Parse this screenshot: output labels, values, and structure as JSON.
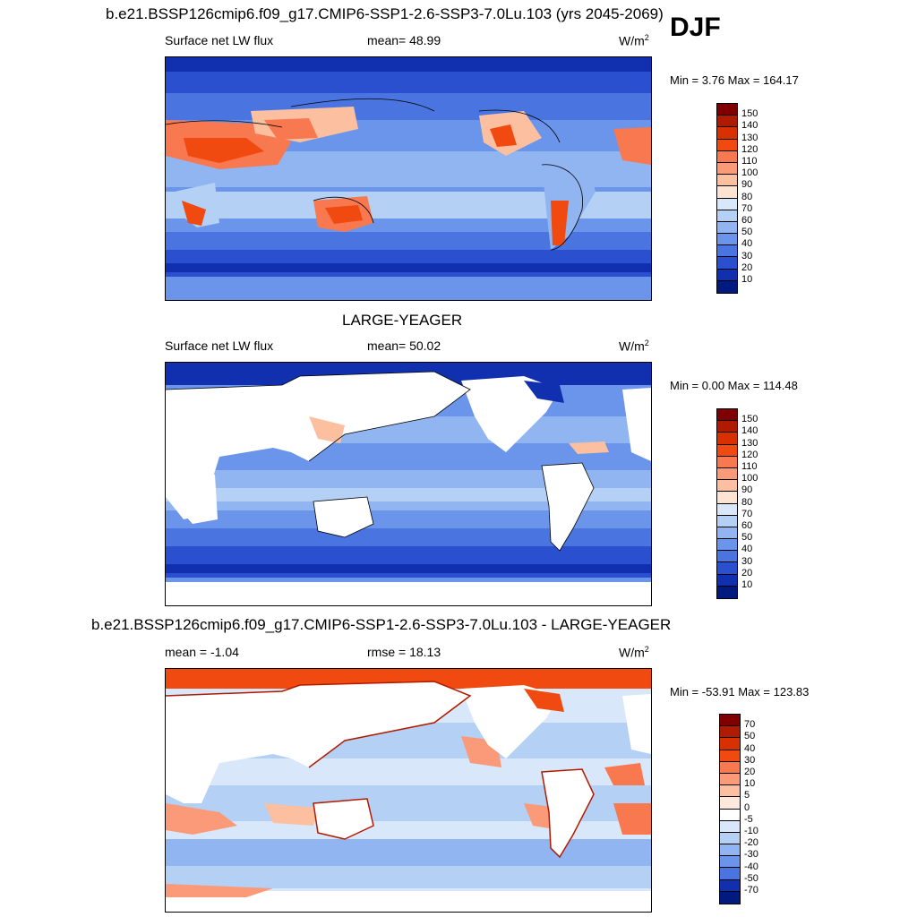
{
  "season": "DJF",
  "panels": [
    {
      "title": "b.e21.BSSP126cmip6.f09_g17.CMIP6-SSP1-2.6-SSP3-7.0Lu.103 (yrs 2045-2069)",
      "left_label": "Surface net LW flux",
      "center_label": "mean=  48.99",
      "units": "W/m",
      "units_exp": "2",
      "minmax": "Min =   3.76 Max = 164.17",
      "ticks": [
        "150",
        "140",
        "130",
        "120",
        "110",
        "100",
        "90",
        "80",
        "70",
        "60",
        "50",
        "40",
        "30",
        "20",
        "10"
      ],
      "colors": [
        "#7f0000",
        "#b01a00",
        "#d83000",
        "#f04a10",
        "#f87850",
        "#fa9a78",
        "#fcc0a0",
        "#fde4d2",
        "#d8e8fa",
        "#b4d0f5",
        "#90b5f0",
        "#6a95ea",
        "#4a75e0",
        "#2a50d0",
        "#1030b0",
        "#001a80"
      ]
    },
    {
      "title": "LARGE-YEAGER",
      "left_label": "Surface net LW flux",
      "center_label": "mean=  50.02",
      "units": "W/m",
      "units_exp": "2",
      "minmax": "Min =   0.00 Max = 114.48",
      "ticks": [
        "150",
        "140",
        "130",
        "120",
        "110",
        "100",
        "90",
        "80",
        "70",
        "60",
        "50",
        "40",
        "30",
        "20",
        "10"
      ],
      "colors": [
        "#7f0000",
        "#b01a00",
        "#d83000",
        "#f04a10",
        "#f87850",
        "#fa9a78",
        "#fcc0a0",
        "#fde4d2",
        "#d8e8fa",
        "#b4d0f5",
        "#90b5f0",
        "#6a95ea",
        "#4a75e0",
        "#2a50d0",
        "#1030b0",
        "#001a80"
      ]
    },
    {
      "title": "b.e21.BSSP126cmip6.f09_g17.CMIP6-SSP1-2.6-SSP3-7.0Lu.103 - LARGE-YEAGER",
      "left_label": "mean =  -1.04",
      "center_label": "rmse =  18.13",
      "units": "W/m",
      "units_exp": "2",
      "minmax": "Min = -53.91 Max = 123.83",
      "ticks": [
        "70",
        "50",
        "40",
        "30",
        "20",
        "10",
        "5",
        "0",
        "-5",
        "-10",
        "-20",
        "-30",
        "-40",
        "-50",
        "-70"
      ],
      "colors": [
        "#7f0000",
        "#b01a00",
        "#d83000",
        "#f04a10",
        "#f87850",
        "#fa9a78",
        "#fcc0a0",
        "#fde8dc",
        "#ffffff",
        "#d8e8fa",
        "#b4d0f5",
        "#90b5f0",
        "#6a95ea",
        "#4a75e0",
        "#1030b0",
        "#001a80"
      ]
    }
  ]
}
